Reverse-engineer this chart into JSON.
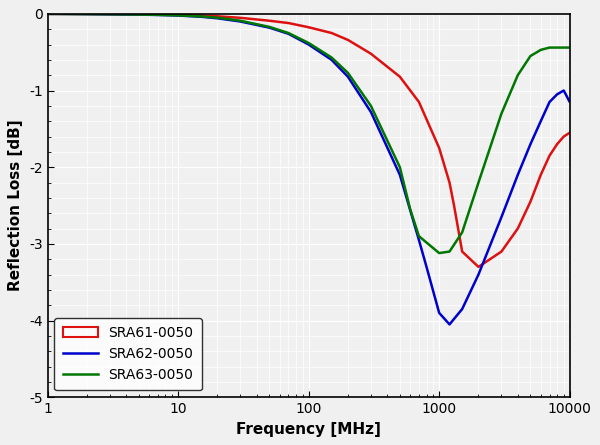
{
  "title": "",
  "xlabel": "Frequency [MHz]",
  "ylabel": "Reflection Loss [dB]",
  "xlim": [
    1,
    10000
  ],
  "ylim": [
    -5,
    0
  ],
  "yticks": [
    0,
    -1,
    -2,
    -3,
    -4,
    -5
  ],
  "background_color": "#f0f0f0",
  "plot_bg_color": "#f0f0f0",
  "grid_color": "#ffffff",
  "series": [
    {
      "label": "SRA61-0050",
      "color": "#dd1111",
      "freq": [
        1,
        2,
        3,
        5,
        7,
        10,
        15,
        20,
        30,
        50,
        70,
        100,
        150,
        200,
        300,
        500,
        700,
        1000,
        1200,
        1300,
        1500,
        2000,
        3000,
        4000,
        5000,
        6000,
        7000,
        8000,
        9000,
        10000
      ],
      "vals": [
        0,
        -0.002,
        -0.004,
        -0.007,
        -0.01,
        -0.014,
        -0.022,
        -0.032,
        -0.052,
        -0.09,
        -0.12,
        -0.175,
        -0.25,
        -0.34,
        -0.52,
        -0.82,
        -1.15,
        -1.75,
        -2.2,
        -2.5,
        -3.1,
        -3.3,
        -3.1,
        -2.8,
        -2.45,
        -2.1,
        -1.85,
        -1.7,
        -1.6,
        -1.55
      ]
    },
    {
      "label": "SRA62-0050",
      "color": "#0000cc",
      "freq": [
        1,
        2,
        3,
        5,
        7,
        10,
        15,
        20,
        30,
        50,
        70,
        100,
        150,
        200,
        300,
        500,
        700,
        800,
        1000,
        1200,
        1500,
        2000,
        3000,
        4000,
        5000,
        6000,
        7000,
        8000,
        9000,
        10000
      ],
      "vals": [
        0,
        -0.003,
        -0.006,
        -0.01,
        -0.015,
        -0.022,
        -0.038,
        -0.058,
        -0.1,
        -0.18,
        -0.26,
        -0.4,
        -0.6,
        -0.82,
        -1.28,
        -2.1,
        -2.95,
        -3.3,
        -3.9,
        -4.05,
        -3.85,
        -3.4,
        -2.65,
        -2.1,
        -1.7,
        -1.4,
        -1.15,
        -1.05,
        -1.0,
        -1.15
      ]
    },
    {
      "label": "SRA63-0050",
      "color": "#007700",
      "freq": [
        1,
        2,
        3,
        5,
        7,
        10,
        15,
        20,
        30,
        50,
        70,
        100,
        150,
        200,
        300,
        500,
        600,
        700,
        1000,
        1200,
        1500,
        2000,
        3000,
        4000,
        5000,
        6000,
        7000,
        8000,
        9000,
        10000
      ],
      "vals": [
        0,
        -0.003,
        -0.005,
        -0.009,
        -0.013,
        -0.02,
        -0.034,
        -0.05,
        -0.09,
        -0.17,
        -0.25,
        -0.38,
        -0.57,
        -0.77,
        -1.2,
        -2.0,
        -2.55,
        -2.9,
        -3.12,
        -3.1,
        -2.85,
        -2.2,
        -1.3,
        -0.8,
        -0.55,
        -0.47,
        -0.44,
        -0.44,
        -0.44,
        -0.44
      ]
    }
  ]
}
